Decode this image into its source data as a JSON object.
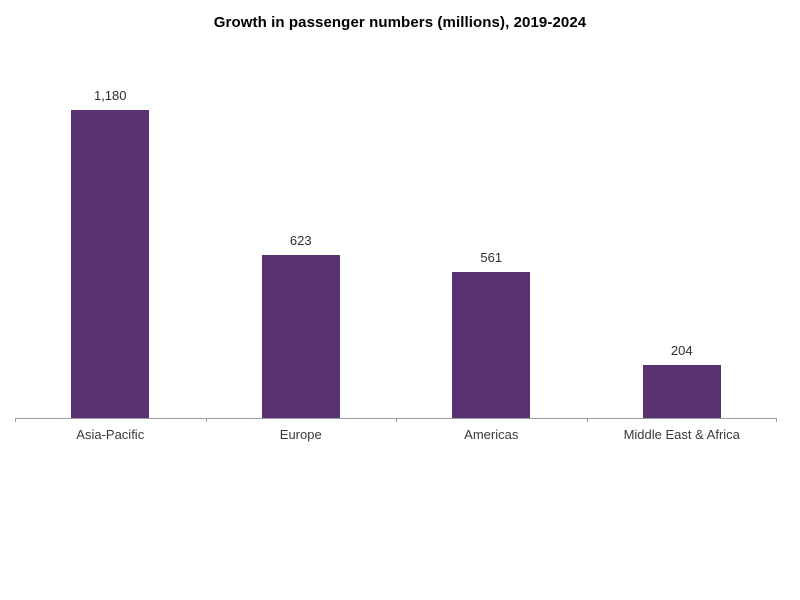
{
  "chart_data": {
    "type": "bar",
    "orientation": "vertical",
    "title": "Growth in passenger numbers (millions), 2019-2024",
    "categories": [
      "Asia-Pacific",
      "Europe",
      "Americas",
      "Middle East & Africa"
    ],
    "values": [
      1180,
      623,
      561,
      204
    ],
    "value_labels": [
      "1,180",
      "623",
      "561",
      "204"
    ],
    "xlabel": "",
    "ylabel": "",
    "ylim": [
      0,
      1180
    ],
    "grid": false,
    "legend": false,
    "y_axis_shown": false,
    "data_labels_position": "above-bar",
    "colors": {
      "bar": "#593371",
      "axis": "#9d9d9d",
      "title": "#000000",
      "value_label": "#2e2e2e",
      "category_label": "#3a3a3a",
      "background": "#ffffff"
    }
  }
}
